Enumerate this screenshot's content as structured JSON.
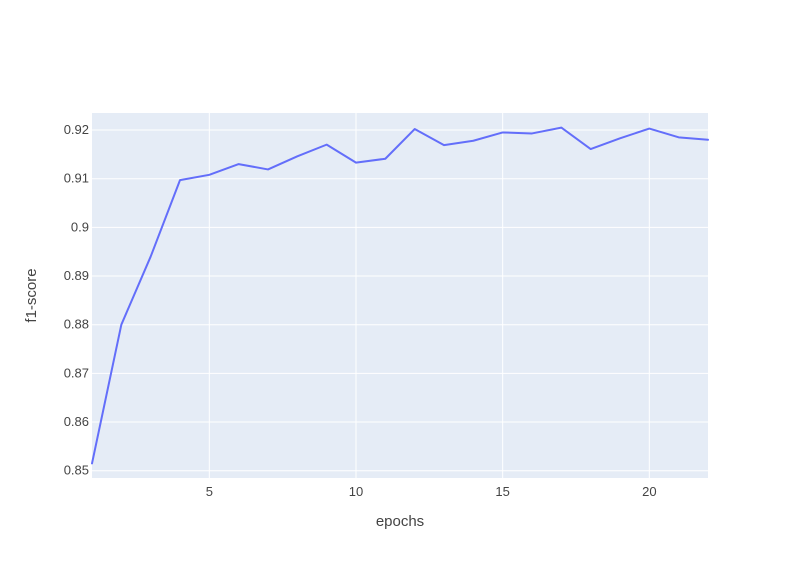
{
  "chart_data": {
    "type": "line",
    "title": "",
    "xlabel": "epochs",
    "ylabel": "f1-score",
    "xlim": [
      1,
      22
    ],
    "ylim": [
      0.8485,
      0.9235
    ],
    "x_ticks": [
      5,
      10,
      15,
      20
    ],
    "x_tick_labels": [
      "5",
      "10",
      "15",
      "20"
    ],
    "y_ticks": [
      0.85,
      0.86,
      0.87,
      0.88,
      0.89,
      0.9,
      0.91,
      0.92
    ],
    "y_tick_labels": [
      "0.85",
      "0.86",
      "0.87",
      "0.88",
      "0.89",
      "0.9",
      "0.91",
      "0.92"
    ],
    "grid": true,
    "legend": "none",
    "colors": {
      "plot_background": "#E5ECF6",
      "grid": "#ffffff",
      "line": "#636EFA",
      "text": "#444444"
    },
    "series": [
      {
        "x": [
          1,
          2,
          3,
          4,
          5,
          6,
          7,
          8,
          9,
          10,
          11,
          12,
          13,
          14,
          15,
          16,
          17,
          18,
          19,
          20,
          21,
          22
        ],
        "y": [
          0.8515,
          0.88,
          0.894,
          0.9097,
          0.9108,
          0.913,
          0.9119,
          0.9146,
          0.917,
          0.9133,
          0.9141,
          0.9202,
          0.9169,
          0.9178,
          0.9195,
          0.9193,
          0.9205,
          0.9161,
          0.9183,
          0.9203,
          0.9185,
          0.918
        ]
      }
    ]
  }
}
